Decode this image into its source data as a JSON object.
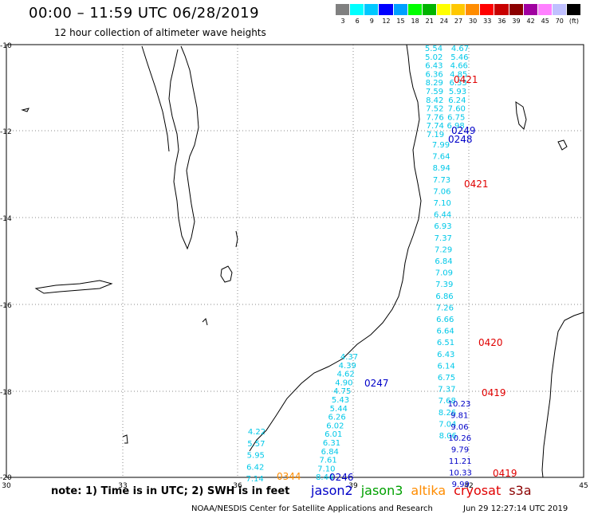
{
  "title": "00:00  –  11:59 UTC 06/28/2019",
  "subtitle": "12 hour collection of altimeter wave heights",
  "colorbar": {
    "colors": [
      "#808080",
      "#00ffff",
      "#00c8ff",
      "#0000ff",
      "#00a0ff",
      "#00ff00",
      "#00b400",
      "#ffff00",
      "#ffc800",
      "#ff8c00",
      "#ff0000",
      "#c80000",
      "#8b0000",
      "#a000a0",
      "#ff80ff",
      "#c0c0ff",
      "#000000"
    ],
    "labels": [
      "3",
      "6",
      "9",
      "12",
      "15",
      "18",
      "21",
      "24",
      "27",
      "30",
      "33",
      "36",
      "39",
      "42",
      "45",
      "70",
      "(ft)"
    ]
  },
  "map": {
    "lon_range": [
      30,
      45
    ],
    "lat_range": [
      -20,
      -10
    ],
    "lon_ticks": [
      "30",
      "33",
      "36",
      "39",
      "42",
      "45"
    ],
    "lat_ticks": [
      "-10",
      "-12",
      "-14",
      "-16",
      "-18",
      "-20"
    ],
    "grid": "dotted"
  },
  "tracks": [
    {
      "satellite": "jason3",
      "color": "#00c8e8",
      "values": [
        "5.54",
        "5.02",
        "6.43",
        "6.36",
        "8.29",
        "7.59",
        "8.42",
        "7.52",
        "7.76",
        "7.74",
        "7.19"
      ]
    },
    {
      "satellite": "jason3",
      "color": "#00c8e8",
      "values": [
        "4.67",
        "5.46",
        "4.66",
        "4.85",
        "6.33",
        "5.93",
        "6.24",
        "7.60",
        "6.75",
        "6.98"
      ]
    },
    {
      "satellite": "jason3",
      "color": "#00c8e8",
      "values": [
        "7.99",
        "7.64",
        "8.94",
        "7.73",
        "7.06",
        "7.10",
        "6.44",
        "6.93",
        "7.37",
        "7.29",
        "6.84",
        "7.09",
        "7.39",
        "6.86",
        "7.26",
        "6.66",
        "6.64",
        "6.51",
        "6.43",
        "6.14",
        "6.75",
        "7.37",
        "7.68",
        "8.26",
        "7.04",
        "8.06"
      ]
    },
    {
      "satellite": "jason2",
      "color": "#0000c8",
      "values": [
        "10.23",
        "9.81",
        "9.06",
        "10.26",
        "9.79",
        "11.21",
        "10.33",
        "9.99"
      ]
    },
    {
      "satellite": "jason3",
      "color": "#00c8e8",
      "values": [
        "4.37",
        "4.39",
        "4.62",
        "4.90",
        "4.75",
        "5.43",
        "5.44",
        "6.26",
        "6.02",
        "6.01",
        "6.31",
        "6.84",
        "7.61",
        "7.10",
        "8.44"
      ]
    },
    {
      "satellite": "jason3",
      "color": "#00c8e8",
      "values": [
        "4.22",
        "5.57",
        "5.95",
        "6.42",
        "7.14"
      ]
    }
  ],
  "pass_times": [
    {
      "text": "0421",
      "color": "#e00000"
    },
    {
      "text": "0249",
      "color": "#0000c8"
    },
    {
      "text": "0248",
      "color": "#0000c8"
    },
    {
      "text": "0421",
      "color": "#e00000"
    },
    {
      "text": "0420",
      "color": "#e00000"
    },
    {
      "text": "0419",
      "color": "#e00000"
    },
    {
      "text": "0419",
      "color": "#e00000"
    },
    {
      "text": "0247",
      "color": "#0000c8"
    },
    {
      "text": "0246",
      "color": "#0000c8"
    },
    {
      "text": "0344",
      "color": "#ff8c00"
    }
  ],
  "legend_note": "note:  1) Time is in UTC;  2) SWH is in feet",
  "satellites": [
    {
      "name": "jason2",
      "color": "#0000c8"
    },
    {
      "name": "jason3",
      "color": "#00a000"
    },
    {
      "name": "altika",
      "color": "#ff8c00"
    },
    {
      "name": "cryosat",
      "color": "#e00000"
    },
    {
      "name": "s3a",
      "color": "#8b0000"
    }
  ],
  "footer": "NOAA/NESDIS Center for Satellite Applications and Research",
  "footer_time": "Jun 29 12:27:14 UTC 2019"
}
